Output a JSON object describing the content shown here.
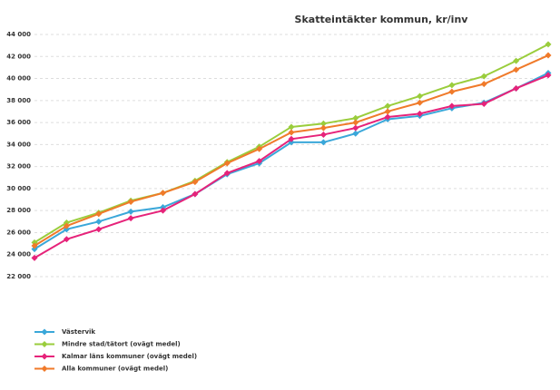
{
  "chart_data": {
    "type": "line",
    "title": "Skatteintäkter kommun, kr/inv",
    "categories": [
      null,
      null,
      null,
      null,
      null,
      null,
      null,
      null,
      null,
      null,
      null,
      null,
      null,
      null,
      null,
      null,
      null
    ],
    "series": [
      {
        "name": "Västervik",
        "color": "#3aa7d9",
        "values": [
          24500,
          26300,
          27000,
          27900,
          28300,
          29500,
          31300,
          32300,
          34200,
          34200,
          35000,
          36300,
          36600,
          37300,
          37800,
          39100,
          40500
        ]
      },
      {
        "name": "Mindre stad/tätort (ovägt medel)",
        "color": "#9acd3c",
        "values": [
          25100,
          26900,
          27800,
          28900,
          29600,
          30700,
          32400,
          33800,
          35600,
          35900,
          36400,
          37500,
          38400,
          39400,
          40200,
          41600,
          43100
        ]
      },
      {
        "name": "Kalmar läns kommuner (ovägt medel)",
        "color": "#e6237a",
        "values": [
          23700,
          25400,
          26300,
          27300,
          28000,
          29500,
          31400,
          32500,
          34500,
          34900,
          35500,
          36500,
          36800,
          37500,
          37700,
          39100,
          40300
        ]
      },
      {
        "name": "Alla kommuner (ovägt medel)",
        "color": "#f07a2a",
        "values": [
          24800,
          26600,
          27700,
          28800,
          29600,
          30600,
          32300,
          33600,
          35100,
          35500,
          36000,
          37000,
          37800,
          38800,
          39500,
          40800,
          42100
        ]
      }
    ],
    "ylim": [
      22000,
      44000
    ],
    "yticks": [
      {
        "value": 22000,
        "label": "22 000"
      },
      {
        "value": 24000,
        "label": "24 000"
      },
      {
        "value": 26000,
        "label": "26 000"
      },
      {
        "value": 28000,
        "label": "28 000"
      },
      {
        "value": 30000,
        "label": "30 000"
      },
      {
        "value": 32000,
        "label": "32 000"
      },
      {
        "value": 34000,
        "label": "34 000"
      },
      {
        "value": 36000,
        "label": "36 000"
      },
      {
        "value": 38000,
        "label": "38 000"
      },
      {
        "value": 40000,
        "label": "40 000"
      },
      {
        "value": 42000,
        "label": "42 000"
      },
      {
        "value": 44000,
        "label": "44 000"
      }
    ],
    "grid": true
  }
}
